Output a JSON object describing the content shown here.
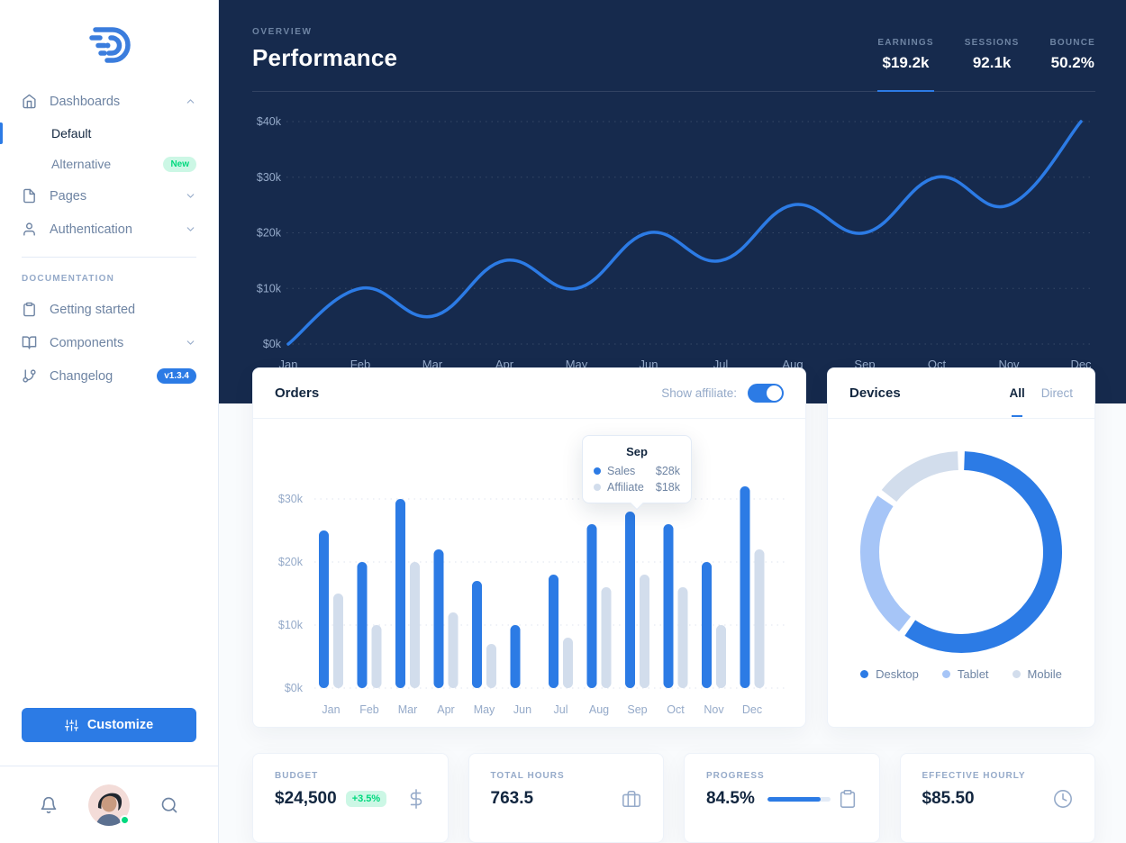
{
  "colors": {
    "primary": "#2c7be5",
    "dark_bg": "#162a4d",
    "text_dark": "#12263f",
    "text_grey": "#6e84a3",
    "text_light": "#95aac9",
    "bar_grey": "#d2ddec",
    "success": "#00d97e",
    "success_bg": "#ccf7e5",
    "border": "#e3ebf6",
    "page_bg": "#f9fbfd"
  },
  "sidebar": {
    "items": [
      {
        "label": "Dashboards",
        "icon": "home",
        "chevron": "up"
      },
      {
        "label": "Default",
        "active": true
      },
      {
        "label": "Alternative",
        "badge": "New"
      },
      {
        "label": "Pages",
        "icon": "file",
        "chevron": "down"
      },
      {
        "label": "Authentication",
        "icon": "user",
        "chevron": "down"
      }
    ],
    "section_heading": "DOCUMENTATION",
    "docs": [
      {
        "label": "Getting started",
        "icon": "clipboard"
      },
      {
        "label": "Components",
        "icon": "book-open",
        "chevron": "down"
      },
      {
        "label": "Changelog",
        "icon": "git-branch",
        "badge": "v1.3.4"
      }
    ],
    "customize_label": "Customize"
  },
  "header": {
    "overline": "OVERVIEW",
    "title": "Performance",
    "stats": [
      {
        "label": "EARNINGS",
        "value": "$19.2k",
        "active": true
      },
      {
        "label": "SESSIONS",
        "value": "92.1k"
      },
      {
        "label": "BOUNCE",
        "value": "50.2%"
      }
    ]
  },
  "orders": {
    "title": "Orders",
    "toggle_label": "Show affiliate:",
    "toggle_on": true,
    "tooltip": {
      "title": "Sep",
      "rows": [
        {
          "label": "Sales",
          "value": "$28k"
        },
        {
          "label": "Affiliate",
          "value": "$18k"
        }
      ]
    }
  },
  "devices": {
    "title": "Devices",
    "tabs": [
      {
        "label": "All",
        "active": true
      },
      {
        "label": "Direct"
      }
    ]
  },
  "stat_cards": [
    {
      "label": "BUDGET",
      "value": "$24,500",
      "badge": "+3.5%",
      "icon": "dollar-sign"
    },
    {
      "label": "TOTAL HOURS",
      "value": "763.5",
      "icon": "briefcase"
    },
    {
      "label": "PROGRESS",
      "value": "84.5%",
      "progress": 84.5,
      "icon": "clipboard"
    },
    {
      "label": "EFFECTIVE HOURLY",
      "value": "$85.50",
      "icon": "clock"
    }
  ],
  "chart_data": [
    {
      "type": "line",
      "title": "Performance (earnings by month)",
      "x": [
        "Jan",
        "Feb",
        "Mar",
        "Apr",
        "May",
        "Jun",
        "Jul",
        "Aug",
        "Sep",
        "Oct",
        "Nov",
        "Dec"
      ],
      "series": [
        {
          "name": "Earnings",
          "color": "#2c7be5",
          "values": [
            0,
            10,
            5,
            15,
            10,
            20,
            15,
            25,
            20,
            30,
            25,
            40
          ]
        }
      ],
      "ylim": [
        0,
        40
      ],
      "yticks": [
        0,
        10,
        20,
        30,
        40
      ],
      "ytick_format": "$Nk",
      "grid": "dotted",
      "legend": "none"
    },
    {
      "type": "bar",
      "title": "Orders",
      "categories": [
        "Jan",
        "Feb",
        "Mar",
        "Apr",
        "May",
        "Jun",
        "Jul",
        "Aug",
        "Sep",
        "Oct",
        "Nov",
        "Dec"
      ],
      "series": [
        {
          "name": "Sales",
          "color": "#2c7be5",
          "values": [
            25,
            20,
            30,
            22,
            17,
            10,
            18,
            26,
            28,
            26,
            20,
            32
          ]
        },
        {
          "name": "Affiliate",
          "color": "#d2ddec",
          "values": [
            15,
            10,
            20,
            12,
            7,
            0,
            8,
            16,
            18,
            16,
            10,
            22
          ]
        }
      ],
      "ylim": [
        0,
        30
      ],
      "yticks": [
        0,
        10,
        20,
        30
      ],
      "ytick_format": "$Nk",
      "grid": "dotted",
      "legend": "none"
    },
    {
      "type": "pie",
      "title": "Devices",
      "labels": [
        "Desktop",
        "Tablet",
        "Mobile"
      ],
      "values": [
        60,
        25,
        15
      ],
      "colors": [
        "#2c7be5",
        "#a6c5f7",
        "#d2ddec"
      ],
      "donut": true,
      "legend_position": "bottom"
    }
  ]
}
